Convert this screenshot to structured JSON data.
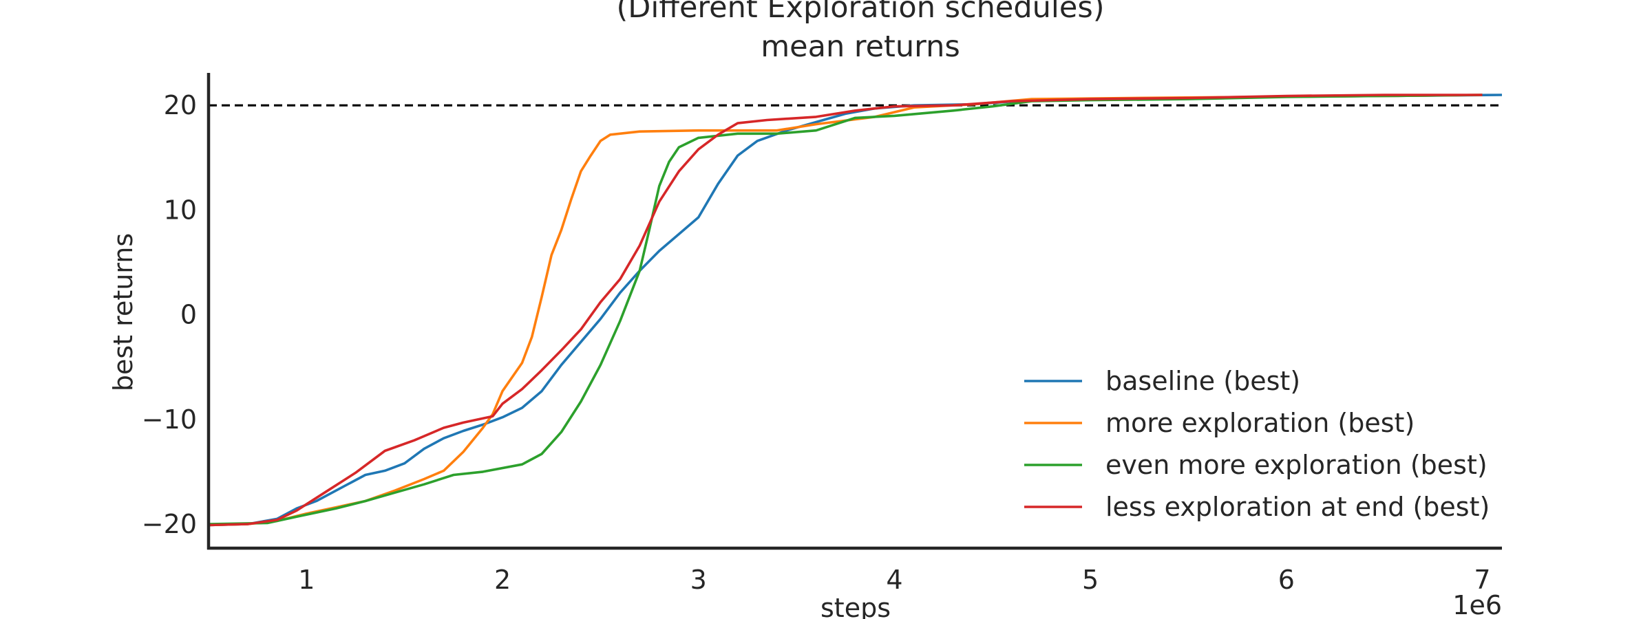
{
  "chart_data": {
    "type": "line",
    "title": "(Different Exploration schedules)",
    "subtitle": "mean returns",
    "xlabel": "steps",
    "ylabel": "best returns",
    "x_offset_label": "1e6",
    "xlim": [
      0.5,
      7.1
    ],
    "ylim": [
      -22.3,
      23.1
    ],
    "x_ticks": [
      1,
      2,
      3,
      4,
      5,
      6,
      7
    ],
    "x_tick_labels": [
      "1",
      "2",
      "3",
      "4",
      "5",
      "6",
      "7"
    ],
    "y_ticks": [
      -20,
      -10,
      0,
      10,
      20
    ],
    "y_tick_labels": [
      "−20",
      "−10",
      "0",
      "10",
      "20"
    ],
    "grid": false,
    "legend_position": "lower right",
    "reference_line": {
      "y": 20,
      "style": "dashed",
      "color": "#000000"
    },
    "series": [
      {
        "name": "baseline (best)",
        "color": "#1f77b4",
        "points": [
          [
            0.5,
            -20.1
          ],
          [
            0.7,
            -20.0
          ],
          [
            0.85,
            -19.5
          ],
          [
            0.95,
            -18.5
          ],
          [
            1.05,
            -17.8
          ],
          [
            1.2,
            -16.3
          ],
          [
            1.3,
            -15.3
          ],
          [
            1.4,
            -14.9
          ],
          [
            1.5,
            -14.2
          ],
          [
            1.6,
            -12.8
          ],
          [
            1.7,
            -11.8
          ],
          [
            1.8,
            -11.1
          ],
          [
            1.9,
            -10.5
          ],
          [
            2.0,
            -9.8
          ],
          [
            2.1,
            -8.9
          ],
          [
            2.2,
            -7.3
          ],
          [
            2.3,
            -4.8
          ],
          [
            2.4,
            -2.6
          ],
          [
            2.5,
            -0.4
          ],
          [
            2.6,
            2.1
          ],
          [
            2.7,
            4.2
          ],
          [
            2.8,
            6.1
          ],
          [
            2.9,
            7.7
          ],
          [
            3.0,
            9.3
          ],
          [
            3.1,
            12.5
          ],
          [
            3.2,
            15.2
          ],
          [
            3.3,
            16.6
          ],
          [
            3.45,
            17.6
          ],
          [
            3.6,
            18.4
          ],
          [
            3.75,
            19.2
          ],
          [
            3.9,
            19.7
          ],
          [
            4.1,
            20.0
          ],
          [
            4.4,
            20.1
          ],
          [
            4.7,
            20.5
          ],
          [
            5.2,
            20.6
          ],
          [
            5.8,
            20.8
          ],
          [
            6.5,
            20.9
          ],
          [
            7.1,
            21.0
          ]
        ]
      },
      {
        "name": "more exploration (best)",
        "color": "#ff7f0e",
        "points": [
          [
            0.5,
            -20.1
          ],
          [
            0.7,
            -20.0
          ],
          [
            0.85,
            -19.7
          ],
          [
            1.0,
            -19.0
          ],
          [
            1.15,
            -18.4
          ],
          [
            1.3,
            -17.8
          ],
          [
            1.45,
            -16.8
          ],
          [
            1.6,
            -15.7
          ],
          [
            1.7,
            -14.9
          ],
          [
            1.8,
            -13.1
          ],
          [
            1.9,
            -10.8
          ],
          [
            1.95,
            -9.5
          ],
          [
            2.0,
            -7.3
          ],
          [
            2.1,
            -4.6
          ],
          [
            2.15,
            -2.1
          ],
          [
            2.2,
            1.7
          ],
          [
            2.25,
            5.7
          ],
          [
            2.3,
            8.1
          ],
          [
            2.35,
            11.0
          ],
          [
            2.4,
            13.7
          ],
          [
            2.45,
            15.2
          ],
          [
            2.5,
            16.6
          ],
          [
            2.55,
            17.2
          ],
          [
            2.7,
            17.5
          ],
          [
            3.0,
            17.6
          ],
          [
            3.4,
            17.6
          ],
          [
            3.6,
            18.2
          ],
          [
            3.9,
            18.9
          ],
          [
            4.1,
            19.8
          ],
          [
            4.4,
            20.1
          ],
          [
            4.7,
            20.6
          ],
          [
            5.2,
            20.7
          ],
          [
            5.8,
            20.8
          ],
          [
            6.5,
            20.9
          ],
          [
            7.0,
            21.0
          ]
        ]
      },
      {
        "name": "even more exploration (best)",
        "color": "#2ca02c",
        "points": [
          [
            0.5,
            -20.0
          ],
          [
            0.8,
            -19.9
          ],
          [
            0.95,
            -19.3
          ],
          [
            1.15,
            -18.5
          ],
          [
            1.3,
            -17.8
          ],
          [
            1.45,
            -17.0
          ],
          [
            1.6,
            -16.2
          ],
          [
            1.75,
            -15.3
          ],
          [
            1.9,
            -15.0
          ],
          [
            2.1,
            -14.3
          ],
          [
            2.2,
            -13.3
          ],
          [
            2.3,
            -11.2
          ],
          [
            2.4,
            -8.3
          ],
          [
            2.5,
            -4.8
          ],
          [
            2.6,
            -0.6
          ],
          [
            2.7,
            4.2
          ],
          [
            2.75,
            8.2
          ],
          [
            2.8,
            12.3
          ],
          [
            2.85,
            14.6
          ],
          [
            2.9,
            16.0
          ],
          [
            3.0,
            16.9
          ],
          [
            3.2,
            17.3
          ],
          [
            3.4,
            17.3
          ],
          [
            3.6,
            17.6
          ],
          [
            3.8,
            18.8
          ],
          [
            4.0,
            19.0
          ],
          [
            4.3,
            19.5
          ],
          [
            4.5,
            19.9
          ],
          [
            4.7,
            20.4
          ],
          [
            5.0,
            20.5
          ],
          [
            5.5,
            20.6
          ],
          [
            6.0,
            20.8
          ],
          [
            6.5,
            20.9
          ],
          [
            7.0,
            21.0
          ]
        ]
      },
      {
        "name": "less exploration at end (best)",
        "color": "#d62728",
        "points": [
          [
            0.5,
            -20.1
          ],
          [
            0.7,
            -20.0
          ],
          [
            0.85,
            -19.6
          ],
          [
            0.95,
            -18.7
          ],
          [
            1.1,
            -16.9
          ],
          [
            1.25,
            -15.1
          ],
          [
            1.4,
            -13.0
          ],
          [
            1.55,
            -12.0
          ],
          [
            1.7,
            -10.8
          ],
          [
            1.8,
            -10.3
          ],
          [
            1.95,
            -9.7
          ],
          [
            2.0,
            -8.5
          ],
          [
            2.1,
            -7.1
          ],
          [
            2.2,
            -5.3
          ],
          [
            2.3,
            -3.4
          ],
          [
            2.4,
            -1.4
          ],
          [
            2.5,
            1.2
          ],
          [
            2.6,
            3.4
          ],
          [
            2.7,
            6.6
          ],
          [
            2.8,
            10.8
          ],
          [
            2.9,
            13.7
          ],
          [
            3.0,
            15.8
          ],
          [
            3.1,
            17.2
          ],
          [
            3.2,
            18.3
          ],
          [
            3.35,
            18.6
          ],
          [
            3.6,
            18.9
          ],
          [
            3.8,
            19.5
          ],
          [
            4.0,
            19.9
          ],
          [
            4.3,
            20.0
          ],
          [
            4.6,
            20.4
          ],
          [
            5.0,
            20.6
          ],
          [
            5.5,
            20.7
          ],
          [
            6.0,
            20.9
          ],
          [
            6.5,
            21.0
          ],
          [
            7.0,
            21.0
          ]
        ]
      }
    ]
  }
}
